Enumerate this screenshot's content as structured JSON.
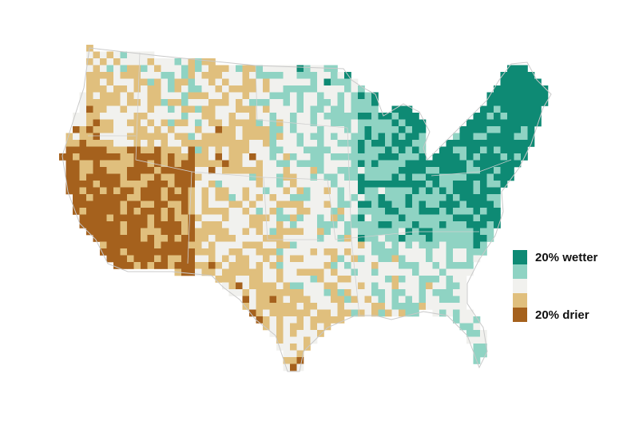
{
  "legend": {
    "items": [
      {
        "label": "20% wetter",
        "color": "#0e8a74"
      },
      {
        "color": "#8fd3c3"
      },
      {
        "color": "#f1f1ee"
      },
      {
        "color": "#e0bf7d"
      },
      {
        "label": "20% drier",
        "color": "#a5611d"
      }
    ]
  }
}
